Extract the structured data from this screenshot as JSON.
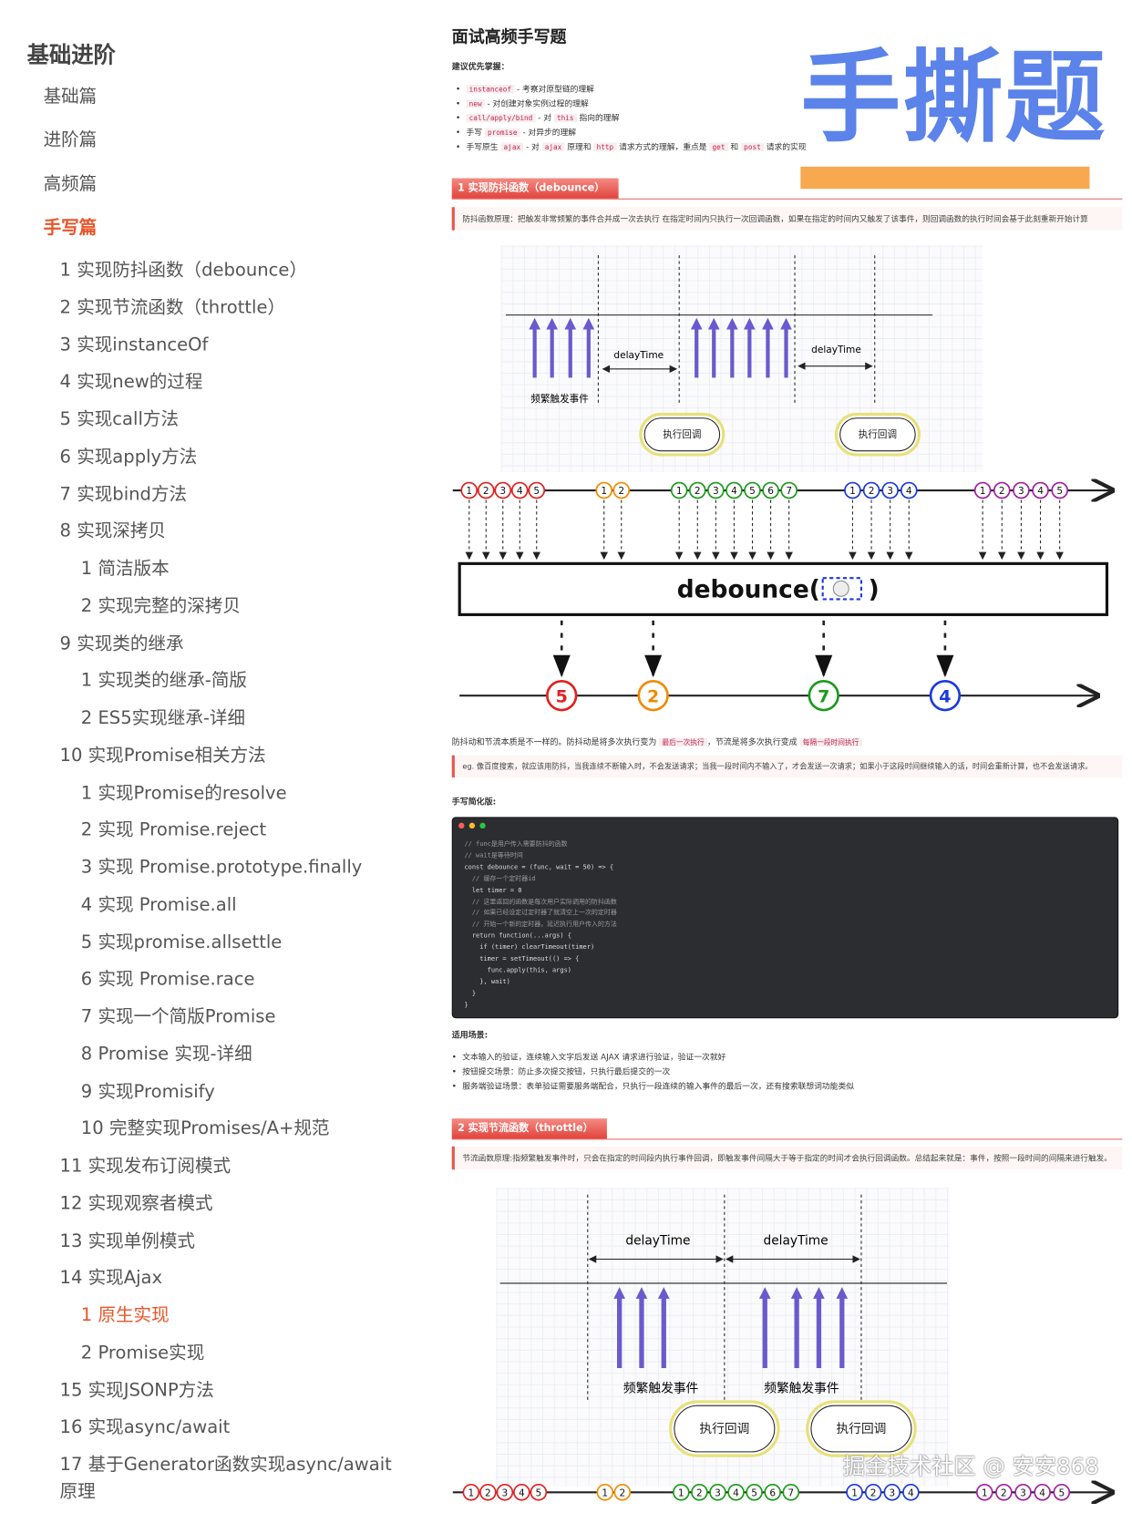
{
  "sidebar": {
    "title": "基础进阶",
    "items": [
      {
        "label": "基础篇",
        "level": 0
      },
      {
        "label": "进阶篇",
        "level": 0
      },
      {
        "label": "高频篇",
        "level": 0
      },
      {
        "label": "手写篇",
        "level": 0,
        "active": true
      },
      {
        "label": "1 实现防抖函数（debounce）",
        "level": 1
      },
      {
        "label": "2 实现节流函数（throttle）",
        "level": 1
      },
      {
        "label": "3 实现instanceOf",
        "level": 1
      },
      {
        "label": "4 实现new的过程",
        "level": 1
      },
      {
        "label": "5 实现call方法",
        "level": 1
      },
      {
        "label": "6 实现apply方法",
        "level": 1
      },
      {
        "label": "7 实现bind方法",
        "level": 1
      },
      {
        "label": "8 实现深拷贝",
        "level": 1
      },
      {
        "label": "1 简洁版本",
        "level": 2
      },
      {
        "label": "2 实现完整的深拷贝",
        "level": 2
      },
      {
        "label": "9 实现类的继承",
        "level": 1
      },
      {
        "label": "1 实现类的继承-简版",
        "level": 2
      },
      {
        "label": "2 ES5实现继承-详细",
        "level": 2
      },
      {
        "label": "10 实现Promise相关方法",
        "level": 1
      },
      {
        "label": "1 实现Promise的resolve",
        "level": 2
      },
      {
        "label": "2 实现 Promise.reject",
        "level": 2
      },
      {
        "label": "3 实现 Promise.prototype.finally",
        "level": 2
      },
      {
        "label": "4 实现 Promise.all",
        "level": 2
      },
      {
        "label": "5 实现promise.allsettle",
        "level": 2
      },
      {
        "label": "6 实现 Promise.race",
        "level": 2
      },
      {
        "label": "7 实现一个简版Promise",
        "level": 2
      },
      {
        "label": "8 Promise 实现-详细",
        "level": 2
      },
      {
        "label": "9 实现Promisify",
        "level": 2
      },
      {
        "label": "10 完整实现Promises/A+规范",
        "level": 2
      },
      {
        "label": "11 实现发布订阅模式",
        "level": 1
      },
      {
        "label": "12 实现观察者模式",
        "level": 1
      },
      {
        "label": "13 实现单例模式",
        "level": 1
      },
      {
        "label": "14 实现Ajax",
        "level": 1
      },
      {
        "label": "1 原生实现",
        "level": 2,
        "active": true
      },
      {
        "label": "2 Promise实现",
        "level": 2
      },
      {
        "label": "15 实现JSONP方法",
        "level": 1
      },
      {
        "label": "16 实现async/await",
        "level": 1
      },
      {
        "label": "17 基于Generator函数实现async/await",
        "level": 1
      },
      {
        "label": "原理",
        "level": 1
      }
    ]
  },
  "main": {
    "title": "面试高频手写题",
    "hero": "手撕题",
    "priority_label": "建议优先掌握：",
    "priority": [
      {
        "code": "instanceof",
        "text": " - 考察对原型链的理解"
      },
      {
        "code": "new",
        "text": " - 对创建对象实例过程的理解"
      },
      {
        "code": "call/apply/bind",
        "text": " - 对 ",
        "code2": "this",
        "text2": " 指向的理解"
      },
      {
        "pre": "手写 ",
        "code": "promise",
        "text": " - 对异步的理解"
      },
      {
        "pre": "手写原生 ",
        "code": "ajax",
        "text": " - 对 ",
        "code2": "ajax",
        "text2": " 原理和 ",
        "code3": "http",
        "text3": " 请求方式的理解，重点是 ",
        "code4": "get",
        "text4": " 和 ",
        "code5": "post",
        "text5": " 请求的实现"
      }
    ],
    "section1": {
      "title": "1 实现防抖函数（debounce）",
      "quote": "防抖函数原理：把触发非常频繁的事件合并成一次去执行 在指定时间内只执行一次回调函数，如果在指定的时间内又触发了该事件，则回调函数的执行时间会基于此刻重新开始计算",
      "diagram": {
        "delay1": "delayTime",
        "delay2": "delayTime",
        "events": "频繁触发事件",
        "callback1": "执行回调",
        "callback2": "执行回调"
      },
      "marble": {
        "operator": "debounce(",
        "operator_end": ")",
        "input_groups": [
          {
            "color": "#e02020",
            "values": [
              1,
              2,
              3,
              4,
              5
            ]
          },
          {
            "color": "#f08a00",
            "values": [
              1,
              2
            ]
          },
          {
            "color": "#1a9a1a",
            "values": [
              1,
              2,
              3,
              4,
              5,
              6,
              7
            ]
          },
          {
            "color": "#1a3adc",
            "values": [
              1,
              2,
              3,
              4
            ]
          },
          {
            "color": "#a020a0",
            "values": [
              1,
              2,
              3,
              4,
              5
            ]
          }
        ],
        "outputs": [
          {
            "value": 5,
            "color": "#e02020"
          },
          {
            "value": 2,
            "color": "#f08a00"
          },
          {
            "value": 7,
            "color": "#1a9a1a"
          },
          {
            "value": 4,
            "color": "#1a3adc"
          }
        ]
      },
      "compare_pre": "防抖动和节流本质是不一样的。防抖动是将多次执行变为 ",
      "compare_code1": "最后一次执行",
      "compare_mid": "，节流是将多次执行变成 ",
      "compare_code2": "每隔一段时间执行",
      "example": "eg. 像百度搜索，就应该用防抖，当我连续不断输入时，不会发送请求；当我一段时间内不输入了，才会发送一次请求；如果小于这段时间继续输入的话，时间会重新计算，也不会发送请求。",
      "code_label": "手写简化版:",
      "code_lines": [
        "// func是用户传入需要防抖的函数",
        "// wait是等待时间",
        "const debounce = (func, wait = 50) => {",
        "  // 缓存一个定时器id",
        "  let timer = 0",
        "  // 这里返回的函数是每次用户实际调用的防抖函数",
        "  // 如果已经设定过定时器了就清空上一次的定时器",
        "  // 开始一个新的定时器，延迟执行用户传入的方法",
        "  return function(...args) {",
        "    if (timer) clearTimeout(timer)",
        "    timer = setTimeout(() => {",
        "      func.apply(this, args)",
        "    }, wait)",
        "  }",
        "}"
      ],
      "scenes_label": "适用场景:",
      "scenes": [
        "文本输入的验证，连续输入文字后发送 AJAX 请求进行验证，验证一次就好",
        "按钮提交场景：防止多次提交按钮，只执行最后提交的一次",
        "服务端验证场景：表单验证需要服务端配合，只执行一段连续的输入事件的最后一次，还有搜索联想词功能类似"
      ]
    },
    "section2": {
      "title": "2 实现节流函数（throttle）",
      "quote": "节流函数原理:指频繁触发事件时，只会在指定的时间段内执行事件回调，即触发事件间隔大于等于指定的时间才会执行回调函数。总结起来就是：事件，按照一段时间的间隔来进行触发。",
      "diagram": {
        "delay1": "delayTime",
        "delay2": "delayTime",
        "events1": "频繁触发事件",
        "events2": "频繁触发事件",
        "callback1": "执行回调",
        "callback2": "执行回调"
      }
    },
    "watermark": "掘金技术社区 @ 安安868"
  }
}
